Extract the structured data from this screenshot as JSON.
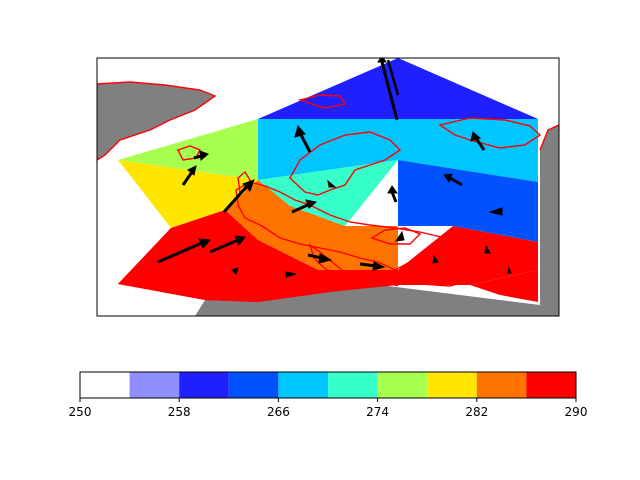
{
  "chart_data": [
    {
      "type": "contourf",
      "title": "",
      "map": {
        "features": [
          "land",
          "coastlines"
        ],
        "land_color": "#808080",
        "coastline_color": "#ff0000"
      },
      "field_min": 250,
      "field_max": 290,
      "cells": [
        {
          "level_index": 2,
          "range": [
            258,
            262
          ]
        },
        {
          "level_index": 4,
          "range": [
            266,
            270
          ]
        },
        {
          "level_index": 3,
          "range": [
            262,
            266
          ]
        },
        {
          "level_index": 6,
          "range": [
            274,
            278
          ]
        },
        {
          "level_index": 7,
          "range": [
            278,
            282
          ]
        },
        {
          "level_index": 5,
          "range": [
            270,
            274
          ]
        },
        {
          "level_index": 8,
          "range": [
            282,
            286
          ]
        },
        {
          "level_index": 9,
          "range": [
            286,
            290
          ]
        }
      ],
      "vectors": {
        "type": "quiver",
        "arrow_color": "#000000",
        "note_units": "wind vectors; lengths relative"
      }
    },
    {
      "type": "colorbar",
      "orientation": "horizontal",
      "levels": [
        250,
        254,
        258,
        262,
        266,
        270,
        274,
        278,
        282,
        286,
        290
      ],
      "colors": [
        "#ffffff",
        "#8f8fff",
        "#1f1fff",
        "#0052ff",
        "#00c6ff",
        "#36ffc9",
        "#a7ff50",
        "#ffe500",
        "#ff7300",
        "#ff0000"
      ],
      "tick_labels": [
        "250",
        "258",
        "266",
        "274",
        "282",
        "290"
      ]
    }
  ]
}
